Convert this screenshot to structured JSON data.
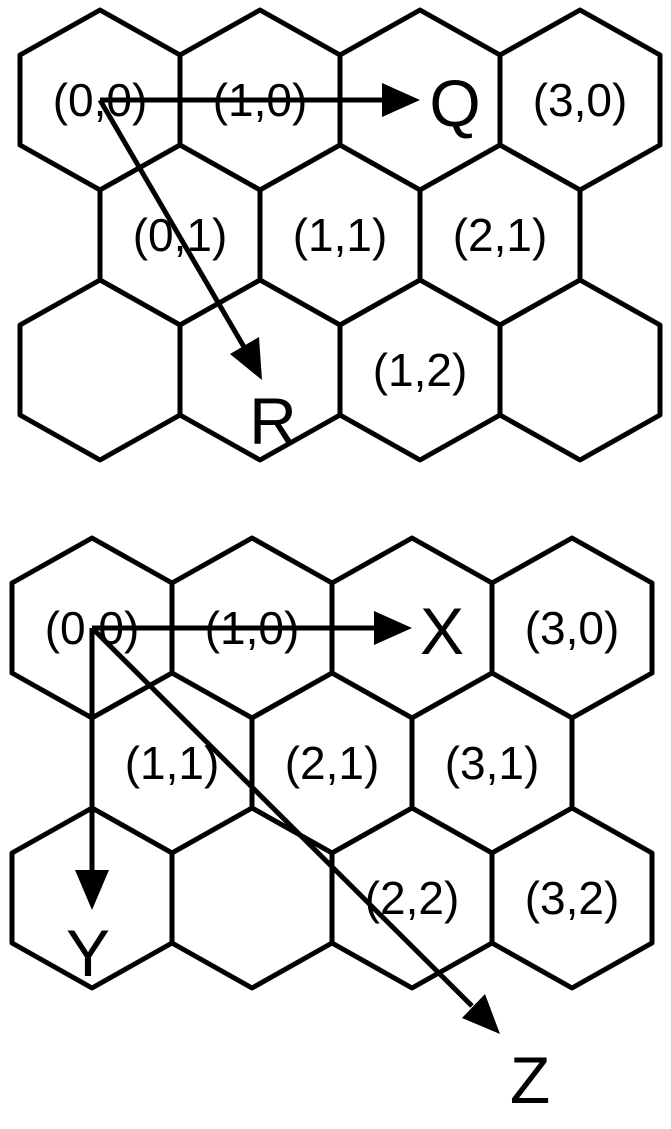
{
  "diagrams": [
    {
      "name": "offset-coordinates",
      "labels": {
        "r0_0": "(0,0)",
        "r0_1": "(1,0)",
        "r0_3": "(3,0)",
        "r1_0": "(0,1)",
        "r1_1": "(1,1)",
        "r1_2": "(2,1)",
        "r2_2": "(1,2)"
      },
      "axes": {
        "q": "Q",
        "r": "R"
      }
    },
    {
      "name": "axial-coordinates",
      "labels": {
        "r0_0": "(0,0)",
        "r0_1": "(1,0)",
        "r0_3": "(3,0)",
        "r1_0": "(1,1)",
        "r1_1": "(2,1)",
        "r1_2": "(3,1)",
        "r2_2": "(2,2)",
        "r2_3": "(3,2)"
      },
      "axes": {
        "x": "X",
        "y": "Y",
        "z": "Z"
      }
    }
  ]
}
